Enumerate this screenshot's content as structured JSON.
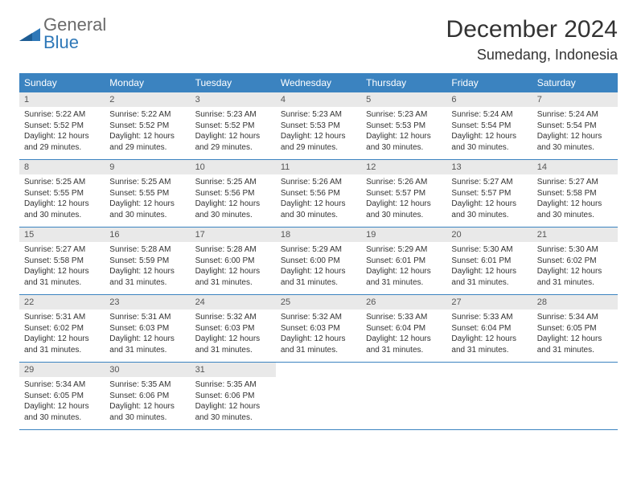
{
  "logo": {
    "wordGeneral": "General",
    "wordBlue": "Blue"
  },
  "title": "December 2024",
  "location": "Sumedang, Indonesia",
  "colors": {
    "headerBg": "#3b83c0",
    "headerText": "#ffffff",
    "dayNumBg": "#e9e9e9",
    "weekBorder": "#3b83c0",
    "pageBg": "#ffffff",
    "bodyText": "#333333"
  },
  "weekdays": [
    "Sunday",
    "Monday",
    "Tuesday",
    "Wednesday",
    "Thursday",
    "Friday",
    "Saturday"
  ],
  "days": [
    {
      "n": "1",
      "sunrise": "5:22 AM",
      "sunset": "5:52 PM",
      "dl": "12 hours and 29 minutes."
    },
    {
      "n": "2",
      "sunrise": "5:22 AM",
      "sunset": "5:52 PM",
      "dl": "12 hours and 29 minutes."
    },
    {
      "n": "3",
      "sunrise": "5:23 AM",
      "sunset": "5:52 PM",
      "dl": "12 hours and 29 minutes."
    },
    {
      "n": "4",
      "sunrise": "5:23 AM",
      "sunset": "5:53 PM",
      "dl": "12 hours and 29 minutes."
    },
    {
      "n": "5",
      "sunrise": "5:23 AM",
      "sunset": "5:53 PM",
      "dl": "12 hours and 30 minutes."
    },
    {
      "n": "6",
      "sunrise": "5:24 AM",
      "sunset": "5:54 PM",
      "dl": "12 hours and 30 minutes."
    },
    {
      "n": "7",
      "sunrise": "5:24 AM",
      "sunset": "5:54 PM",
      "dl": "12 hours and 30 minutes."
    },
    {
      "n": "8",
      "sunrise": "5:25 AM",
      "sunset": "5:55 PM",
      "dl": "12 hours and 30 minutes."
    },
    {
      "n": "9",
      "sunrise": "5:25 AM",
      "sunset": "5:55 PM",
      "dl": "12 hours and 30 minutes."
    },
    {
      "n": "10",
      "sunrise": "5:25 AM",
      "sunset": "5:56 PM",
      "dl": "12 hours and 30 minutes."
    },
    {
      "n": "11",
      "sunrise": "5:26 AM",
      "sunset": "5:56 PM",
      "dl": "12 hours and 30 minutes."
    },
    {
      "n": "12",
      "sunrise": "5:26 AM",
      "sunset": "5:57 PM",
      "dl": "12 hours and 30 minutes."
    },
    {
      "n": "13",
      "sunrise": "5:27 AM",
      "sunset": "5:57 PM",
      "dl": "12 hours and 30 minutes."
    },
    {
      "n": "14",
      "sunrise": "5:27 AM",
      "sunset": "5:58 PM",
      "dl": "12 hours and 30 minutes."
    },
    {
      "n": "15",
      "sunrise": "5:27 AM",
      "sunset": "5:58 PM",
      "dl": "12 hours and 31 minutes."
    },
    {
      "n": "16",
      "sunrise": "5:28 AM",
      "sunset": "5:59 PM",
      "dl": "12 hours and 31 minutes."
    },
    {
      "n": "17",
      "sunrise": "5:28 AM",
      "sunset": "6:00 PM",
      "dl": "12 hours and 31 minutes."
    },
    {
      "n": "18",
      "sunrise": "5:29 AM",
      "sunset": "6:00 PM",
      "dl": "12 hours and 31 minutes."
    },
    {
      "n": "19",
      "sunrise": "5:29 AM",
      "sunset": "6:01 PM",
      "dl": "12 hours and 31 minutes."
    },
    {
      "n": "20",
      "sunrise": "5:30 AM",
      "sunset": "6:01 PM",
      "dl": "12 hours and 31 minutes."
    },
    {
      "n": "21",
      "sunrise": "5:30 AM",
      "sunset": "6:02 PM",
      "dl": "12 hours and 31 minutes."
    },
    {
      "n": "22",
      "sunrise": "5:31 AM",
      "sunset": "6:02 PM",
      "dl": "12 hours and 31 minutes."
    },
    {
      "n": "23",
      "sunrise": "5:31 AM",
      "sunset": "6:03 PM",
      "dl": "12 hours and 31 minutes."
    },
    {
      "n": "24",
      "sunrise": "5:32 AM",
      "sunset": "6:03 PM",
      "dl": "12 hours and 31 minutes."
    },
    {
      "n": "25",
      "sunrise": "5:32 AM",
      "sunset": "6:03 PM",
      "dl": "12 hours and 31 minutes."
    },
    {
      "n": "26",
      "sunrise": "5:33 AM",
      "sunset": "6:04 PM",
      "dl": "12 hours and 31 minutes."
    },
    {
      "n": "27",
      "sunrise": "5:33 AM",
      "sunset": "6:04 PM",
      "dl": "12 hours and 31 minutes."
    },
    {
      "n": "28",
      "sunrise": "5:34 AM",
      "sunset": "6:05 PM",
      "dl": "12 hours and 31 minutes."
    },
    {
      "n": "29",
      "sunrise": "5:34 AM",
      "sunset": "6:05 PM",
      "dl": "12 hours and 30 minutes."
    },
    {
      "n": "30",
      "sunrise": "5:35 AM",
      "sunset": "6:06 PM",
      "dl": "12 hours and 30 minutes."
    },
    {
      "n": "31",
      "sunrise": "5:35 AM",
      "sunset": "6:06 PM",
      "dl": "12 hours and 30 minutes."
    }
  ],
  "labels": {
    "sunrise": "Sunrise:",
    "sunset": "Sunset:",
    "daylight": "Daylight:"
  },
  "layout": {
    "startWeekday": 0,
    "totalCells": 35
  }
}
